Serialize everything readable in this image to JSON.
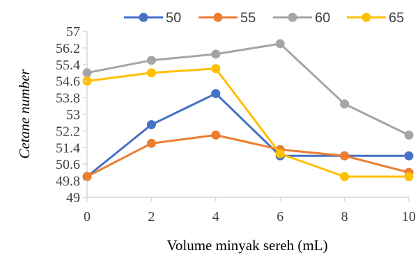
{
  "chart_data": {
    "type": "line",
    "title": "",
    "xlabel": "Volume minyak sereh (mL)",
    "ylabel": "Cetane number",
    "x": [
      0,
      2,
      4,
      6,
      8,
      10
    ],
    "xlim": [
      0,
      10
    ],
    "ylim": [
      49,
      57
    ],
    "yticks": [
      "57",
      "56.2",
      "55.4",
      "54.6",
      "53.8",
      "53",
      "52.2",
      "51.4",
      "50.6",
      "49.8",
      "49"
    ],
    "xticks": [
      "0",
      "2",
      "4",
      "6",
      "8",
      "10"
    ],
    "grid": false,
    "legend_position": "top",
    "series": [
      {
        "name": "50",
        "color": "#4472C4",
        "values": [
          50.0,
          52.5,
          54.0,
          51.0,
          51.0,
          51.0
        ]
      },
      {
        "name": "55",
        "color": "#ED7D31",
        "values": [
          50.0,
          51.6,
          52.0,
          51.3,
          51.0,
          50.2
        ]
      },
      {
        "name": "60",
        "color": "#A5A5A5",
        "values": [
          55.0,
          55.6,
          55.9,
          56.4,
          53.5,
          52.0
        ]
      },
      {
        "name": "65",
        "color": "#FFC000",
        "values": [
          54.6,
          55.0,
          55.2,
          51.1,
          50.0,
          50.0
        ]
      }
    ]
  }
}
